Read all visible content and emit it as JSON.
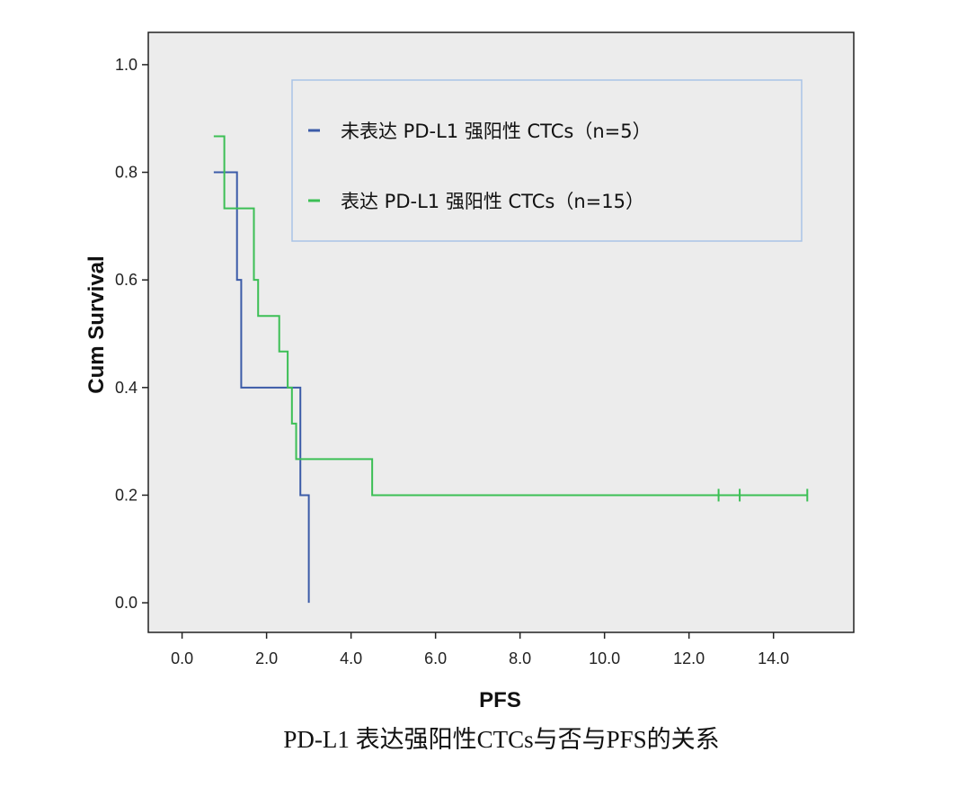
{
  "chart_data": {
    "type": "line",
    "subtype": "kaplan-meier",
    "xlabel": "PFS",
    "ylabel": "Cum Survival",
    "xlim": [
      -0.8,
      15.9
    ],
    "ylim": [
      -0.055,
      1.06
    ],
    "xticks": [
      "0.0",
      "2.0",
      "4.0",
      "6.0",
      "8.0",
      "10.0",
      "12.0",
      "14.0"
    ],
    "xtick_values": [
      0,
      2,
      4,
      6,
      8,
      10,
      12,
      14
    ],
    "yticks": [
      "0.0",
      "0.2",
      "0.4",
      "0.6",
      "0.8",
      "1.0"
    ],
    "ytick_values": [
      0,
      0.2,
      0.4,
      0.6,
      0.8,
      1.0
    ],
    "plot_background": "#ececec",
    "legend_position": "top-right",
    "series": [
      {
        "name": "未表达 PD-L1 强阳性 CTCs（n=5）",
        "color": "#3b5ba8",
        "steps": [
          [
            0.75,
            0.8
          ],
          [
            1.3,
            0.6
          ],
          [
            1.4,
            0.4
          ],
          [
            2.8,
            0.2
          ],
          [
            3.0,
            0.0
          ]
        ],
        "censored": []
      },
      {
        "name": "表达 PD-L1 强阳性 CTCs（n=15）",
        "color": "#3cbf55",
        "steps": [
          [
            0.75,
            0.867
          ],
          [
            1.0,
            0.733
          ],
          [
            1.7,
            0.6
          ],
          [
            1.8,
            0.533
          ],
          [
            2.3,
            0.467
          ],
          [
            2.5,
            0.4
          ],
          [
            2.6,
            0.333
          ],
          [
            2.7,
            0.267
          ],
          [
            4.5,
            0.2
          ]
        ],
        "end": 14.8,
        "censored": [
          12.7,
          13.2,
          14.8
        ]
      }
    ]
  },
  "caption": "PD-L1  表达强阳性CTCs与否与PFS的关系"
}
